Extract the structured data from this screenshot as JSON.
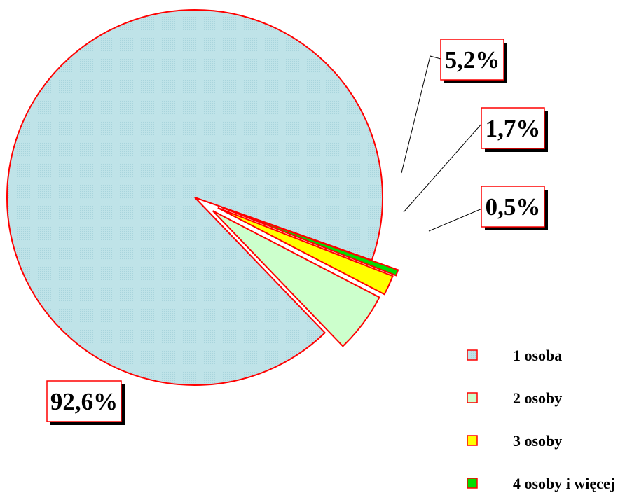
{
  "chart_data": {
    "type": "pie",
    "title": "",
    "categories": [
      "1 osoba",
      "2 osoby",
      "3 osoby",
      "4 osoby i więcej"
    ],
    "values": [
      92.6,
      5.2,
      1.7,
      0.5
    ],
    "data_labels": [
      "92,6%",
      "5,2%",
      "1,7%",
      "0,5%"
    ],
    "colors": [
      "#bfe3e8",
      "#ccffcc",
      "#ffff00",
      "#00dd00"
    ],
    "slice_edge_color": "#ff0000",
    "legend": {
      "position": "bottom-right",
      "entries": [
        "1 osoba",
        "2 osoby",
        "3 osoby",
        "4 osoby i więcej"
      ]
    },
    "exploded": true
  }
}
